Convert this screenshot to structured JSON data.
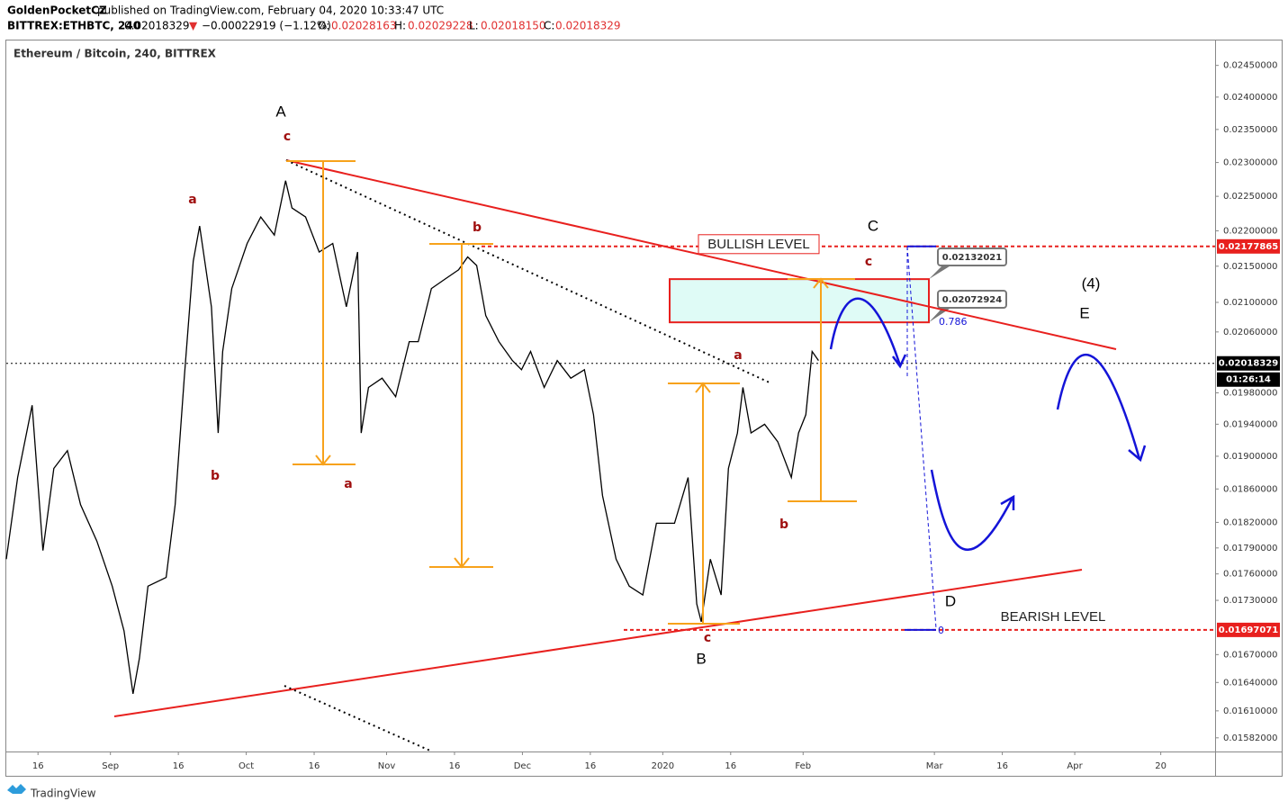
{
  "header": {
    "publisher": "GoldenPocketCZ",
    "published": "published on TradingView.com, February 04, 2020 10:33:47 UTC",
    "symbol": "BITTREX:ETHBTC, 240",
    "last": "0.02018329",
    "change_arrow": "▼",
    "change": "−0.00022919 (−1.12%)",
    "open_label": "O:",
    "open": "0.02028163",
    "high_label": "H:",
    "high": "0.02029228",
    "low_label": "L:",
    "low": "0.02018150",
    "close_label": "C:",
    "close": "0.02018329"
  },
  "chart_data": {
    "type": "line",
    "title": "Ethereum / Bitcoin, 240, BITTREX",
    "color": "#000000",
    "log_scale": true,
    "grid": false,
    "x": [
      8.0,
      10.5,
      13.7,
      16.1,
      18.5,
      21.5,
      24.4,
      28.0,
      31.4,
      34.0,
      36.0,
      37.4,
      39.3,
      43.3,
      45.3,
      47.3,
      49.3,
      50.7,
      53.3,
      54.8,
      55.8,
      57.8,
      61.2,
      64.2,
      67.2,
      69.7,
      71.1,
      74.1,
      77.1,
      80.1,
      83.1,
      85.6,
      86.4,
      88.0,
      91.0,
      94.0,
      97.0,
      99.0,
      101.9,
      104.9,
      107.9,
      109.9,
      111.9,
      113.9,
      116.8,
      119.8,
      121.8,
      123.8,
      126.8,
      129.7,
      132.7,
      135.7,
      137.7,
      139.7,
      142.7,
      145.6,
      148.6,
      151.6,
      155.6,
      158.6,
      160.5,
      161.5,
      163.5,
      165.9,
      167.5,
      169.5,
      170.7,
      172.5,
      175.5,
      178.4,
      181.4,
      183.0,
      184.6,
      186.0,
      187.4
    ],
    "values": [
      0.01777,
      0.01874,
      0.01964,
      0.01787,
      0.01885,
      0.01907,
      0.01841,
      0.01798,
      0.01746,
      0.01696,
      0.01628,
      0.01666,
      0.01746,
      0.01756,
      0.01841,
      0.01999,
      0.02157,
      0.02207,
      0.02094,
      0.01929,
      0.02034,
      0.02119,
      0.02182,
      0.0222,
      0.02194,
      0.02273,
      0.02233,
      0.0222,
      0.0217,
      0.02182,
      0.02094,
      0.0217,
      0.01929,
      0.01987,
      0.01999,
      0.01975,
      0.02047,
      0.02047,
      0.02119,
      0.02132,
      0.02145,
      0.02163,
      0.02151,
      0.02082,
      0.02047,
      0.02022,
      0.0201,
      0.02034,
      0.01987,
      0.02022,
      0.01999,
      0.0201,
      0.01952,
      0.01852,
      0.01777,
      0.01746,
      0.01736,
      0.01819,
      0.01819,
      0.01874,
      0.01726,
      0.01706,
      0.01777,
      0.01736,
      0.01885,
      0.01929,
      0.01987,
      0.01929,
      0.0194,
      0.01918,
      0.01874,
      0.01929,
      0.01952,
      0.02034,
      0.02022
    ],
    "xlim": [
      8,
      275
    ],
    "ylim": [
      0.01568,
      0.0249
    ],
    "xticks": [
      {
        "value": 15,
        "label": "16"
      },
      {
        "value": 31,
        "label": "Sep"
      },
      {
        "value": 46,
        "label": "16"
      },
      {
        "value": 61,
        "label": "Oct"
      },
      {
        "value": 76,
        "label": "16"
      },
      {
        "value": 92,
        "label": "Nov"
      },
      {
        "value": 107,
        "label": "16"
      },
      {
        "value": 122,
        "label": "Dec"
      },
      {
        "value": 137,
        "label": "16"
      },
      {
        "value": 153,
        "label": "2020"
      },
      {
        "value": 168,
        "label": "16"
      },
      {
        "value": 184,
        "label": "Feb"
      },
      {
        "value": 213,
        "label": "Mar"
      },
      {
        "value": 228,
        "label": "16"
      },
      {
        "value": 244,
        "label": "Apr"
      },
      {
        "value": 263,
        "label": "20"
      }
    ],
    "yticks": [
      {
        "value": 0.0245,
        "label": "0.02450000"
      },
      {
        "value": 0.024,
        "label": "0.02400000"
      },
      {
        "value": 0.0235,
        "label": "0.02350000"
      },
      {
        "value": 0.023,
        "label": "0.02300000"
      },
      {
        "value": 0.0225,
        "label": "0.02250000"
      },
      {
        "value": 0.022,
        "label": "0.02200000"
      },
      {
        "value": 0.0215,
        "label": "0.02150000"
      },
      {
        "value": 0.021,
        "label": "0.02100000"
      },
      {
        "value": 0.0206,
        "label": "0.02060000"
      },
      {
        "value": 0.0198,
        "label": "0.01980000"
      },
      {
        "value": 0.0194,
        "label": "0.01940000"
      },
      {
        "value": 0.019,
        "label": "0.01900000"
      },
      {
        "value": 0.0186,
        "label": "0.01860000"
      },
      {
        "value": 0.0182,
        "label": "0.01820000"
      },
      {
        "value": 0.0179,
        "label": "0.01790000"
      },
      {
        "value": 0.0176,
        "label": "0.01760000"
      },
      {
        "value": 0.0173,
        "label": "0.01730000"
      },
      {
        "value": 0.0167,
        "label": "0.01670000"
      },
      {
        "value": 0.0164,
        "label": "0.01640000"
      },
      {
        "value": 0.0161,
        "label": "0.01610000"
      },
      {
        "value": 0.01582,
        "label": "0.01582000"
      }
    ],
    "bullish_level": 0.02177865,
    "bullish_text": "BULLISH LEVEL",
    "bearish_level": 0.01697071,
    "bearish_text": "BEARISH LEVEL",
    "current_price": 0.02018329,
    "countdown": "01:26:14",
    "zone_top": 0.02132021,
    "zone_bottom": 0.02072924,
    "fib_ratio": 0.786,
    "fib_zero": 0,
    "annotations": [
      "A",
      "c",
      "a",
      "b",
      "a",
      "b",
      "a",
      "b",
      "c",
      "B",
      "C",
      "c",
      "(4)",
      "E",
      "D"
    ]
  },
  "footer": "TradingView"
}
